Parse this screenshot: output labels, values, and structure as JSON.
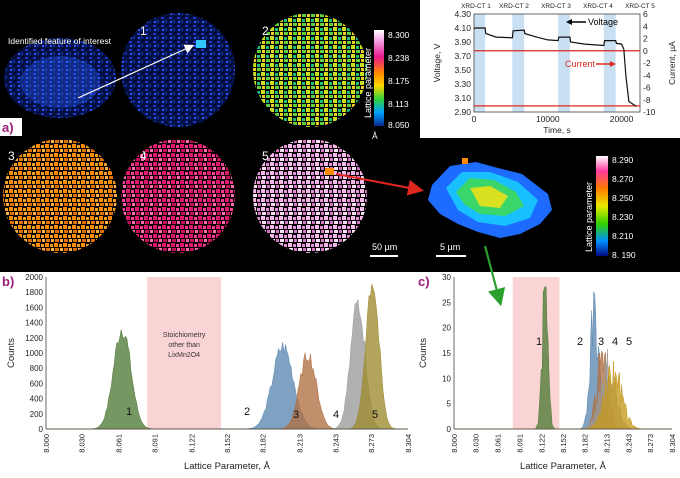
{
  "panel_labels": {
    "a": "a)",
    "b": "b)",
    "c": "c)"
  },
  "panel_a": {
    "feature_label": "Identified feature of interest",
    "slice_numbers": [
      "1",
      "2",
      "3",
      "4",
      "5"
    ],
    "colorbar_top": {
      "title": "Lattice parameter",
      "ticks": [
        "8.300",
        "8.238",
        "8.175",
        "8.113",
        "8.050"
      ],
      "unit": "Å"
    },
    "scale_bar_main": "50 µm",
    "scale_bar_zoom": "5 µm",
    "colorbar_zoom": {
      "title": "Lattice parameter",
      "ticks": [
        "8.290",
        "8.270",
        "8.250",
        "8.230",
        "8.210",
        "8. 190"
      ]
    },
    "colors": {
      "background": "#000000",
      "highlight_red": "#e0281e",
      "arrow_green": "#2ca02c"
    }
  },
  "chart_data": [
    {
      "id": "electrochem",
      "type": "line",
      "xlabel": "Time, s",
      "ylabel": "Voltage, V",
      "y2label": "Current, µA",
      "xlim": [
        0,
        22500
      ],
      "ylim": [
        2.9,
        4.3
      ],
      "y2lim": [
        -10,
        6
      ],
      "x_ticks": [
        "0",
        "10000",
        "20000"
      ],
      "x_tick_values": [
        0,
        10000,
        20000
      ],
      "y_ticks": [
        "2.90",
        "3.10",
        "3.30",
        "3.50",
        "3.70",
        "3.90",
        "4.10",
        "4.30"
      ],
      "y2_ticks": [
        "6",
        "4",
        "2",
        "0",
        "-2",
        "-4",
        "-6",
        "-8",
        "-10"
      ],
      "top_labels": [
        "XRD-CT 1",
        "XRD-CT 2",
        "XRD-CT 3",
        "XRD-CT 4",
        "XRD-CT 5"
      ],
      "shaded_bands": [
        [
          0,
          1500
        ],
        [
          5200,
          6800
        ],
        [
          11400,
          13000
        ],
        [
          17600,
          19200
        ]
      ],
      "series": [
        {
          "name": "Voltage",
          "color": "#111111",
          "x": [
            0,
            200,
            1500,
            1600,
            3000,
            5200,
            5300,
            6800,
            6900,
            8500,
            10000,
            11400,
            11500,
            13000,
            13100,
            15000,
            17600,
            17700,
            19200,
            19300,
            20000,
            20300,
            20600,
            21000,
            22000
          ],
          "y": [
            4.09,
            4.1,
            4.1,
            4.02,
            3.97,
            3.96,
            4.06,
            4.07,
            4.02,
            3.97,
            3.93,
            3.92,
            3.97,
            3.97,
            3.9,
            3.87,
            3.85,
            3.92,
            3.92,
            3.88,
            3.87,
            3.8,
            3.4,
            3.05,
            2.98
          ]
        },
        {
          "name": "Current",
          "color": "#e0281e",
          "segments_y2": [
            0,
            -9
          ],
          "x": [
            0,
            22500
          ],
          "y2": [
            0,
            0
          ]
        }
      ],
      "annotations": [
        {
          "text": "Voltage"
        },
        {
          "text": "Current"
        }
      ]
    },
    {
      "id": "histogram_b",
      "type": "area",
      "xlabel": "Lattice Parameter, Å",
      "ylabel": "Counts",
      "xlim": [
        8.0,
        8.304
      ],
      "ylim": [
        0,
        2000
      ],
      "x_ticks": [
        "8.000",
        "8.030",
        "8.061",
        "8.091",
        "8.122",
        "8.152",
        "8.182",
        "8.213",
        "8.243",
        "8.273",
        "8.304"
      ],
      "y_ticks": [
        "0",
        "200",
        "400",
        "600",
        "800",
        "1000",
        "1200",
        "1400",
        "1600",
        "1800",
        "2000"
      ],
      "shaded_region": {
        "x": [
          8.085,
          8.147
        ],
        "text_lines": [
          "Stoichiometry",
          "other than",
          "LixMn2O4"
        ]
      },
      "series": [
        {
          "name": "1",
          "color": "#4e7a34",
          "center": 8.064,
          "sigma": 0.0072,
          "peak": 1330
        },
        {
          "name": "2",
          "color": "#5b88b1",
          "center": 8.199,
          "sigma": 0.0088,
          "peak": 1080
        },
        {
          "name": "3",
          "color": "#b07042",
          "center": 8.22,
          "sigma": 0.007,
          "peak": 980
        },
        {
          "name": "4",
          "color": "#9a9a9a",
          "center": 8.262,
          "sigma": 0.006,
          "peak": 1700
        },
        {
          "name": "5",
          "color": "#9e8a2e",
          "center": 8.274,
          "sigma": 0.0055,
          "peak": 1960
        }
      ]
    },
    {
      "id": "histogram_c",
      "type": "area",
      "xlabel": "Lattice Parameter, Å",
      "ylabel": "Counts",
      "xlim": [
        8.0,
        8.304
      ],
      "ylim": [
        0,
        30
      ],
      "x_ticks": [
        "8.000",
        "8.030",
        "8.061",
        "8.091",
        "8.122",
        "8.152",
        "8.182",
        "8.213",
        "8.243",
        "8.273",
        "8.304"
      ],
      "y_ticks": [
        "0",
        "5",
        "10",
        "15",
        "20",
        "25",
        "30"
      ],
      "shaded_region": {
        "x": [
          8.082,
          8.147
        ]
      },
      "series": [
        {
          "name": "1",
          "color": "#4e7a34",
          "center": 8.127,
          "sigma": 0.004,
          "peak": 27
        },
        {
          "name": "2",
          "color": "#5b88b1",
          "center": 8.196,
          "sigma": 0.006,
          "peak": 22
        },
        {
          "name": "3",
          "color": "#b07042",
          "center": 8.207,
          "sigma": 0.008,
          "peak": 14
        },
        {
          "name": "4",
          "color": "#9a9a9a",
          "center": 8.214,
          "sigma": 0.011,
          "peak": 12
        },
        {
          "name": "5",
          "color": "#c79a1e",
          "center": 8.222,
          "sigma": 0.012,
          "peak": 11
        }
      ]
    }
  ]
}
